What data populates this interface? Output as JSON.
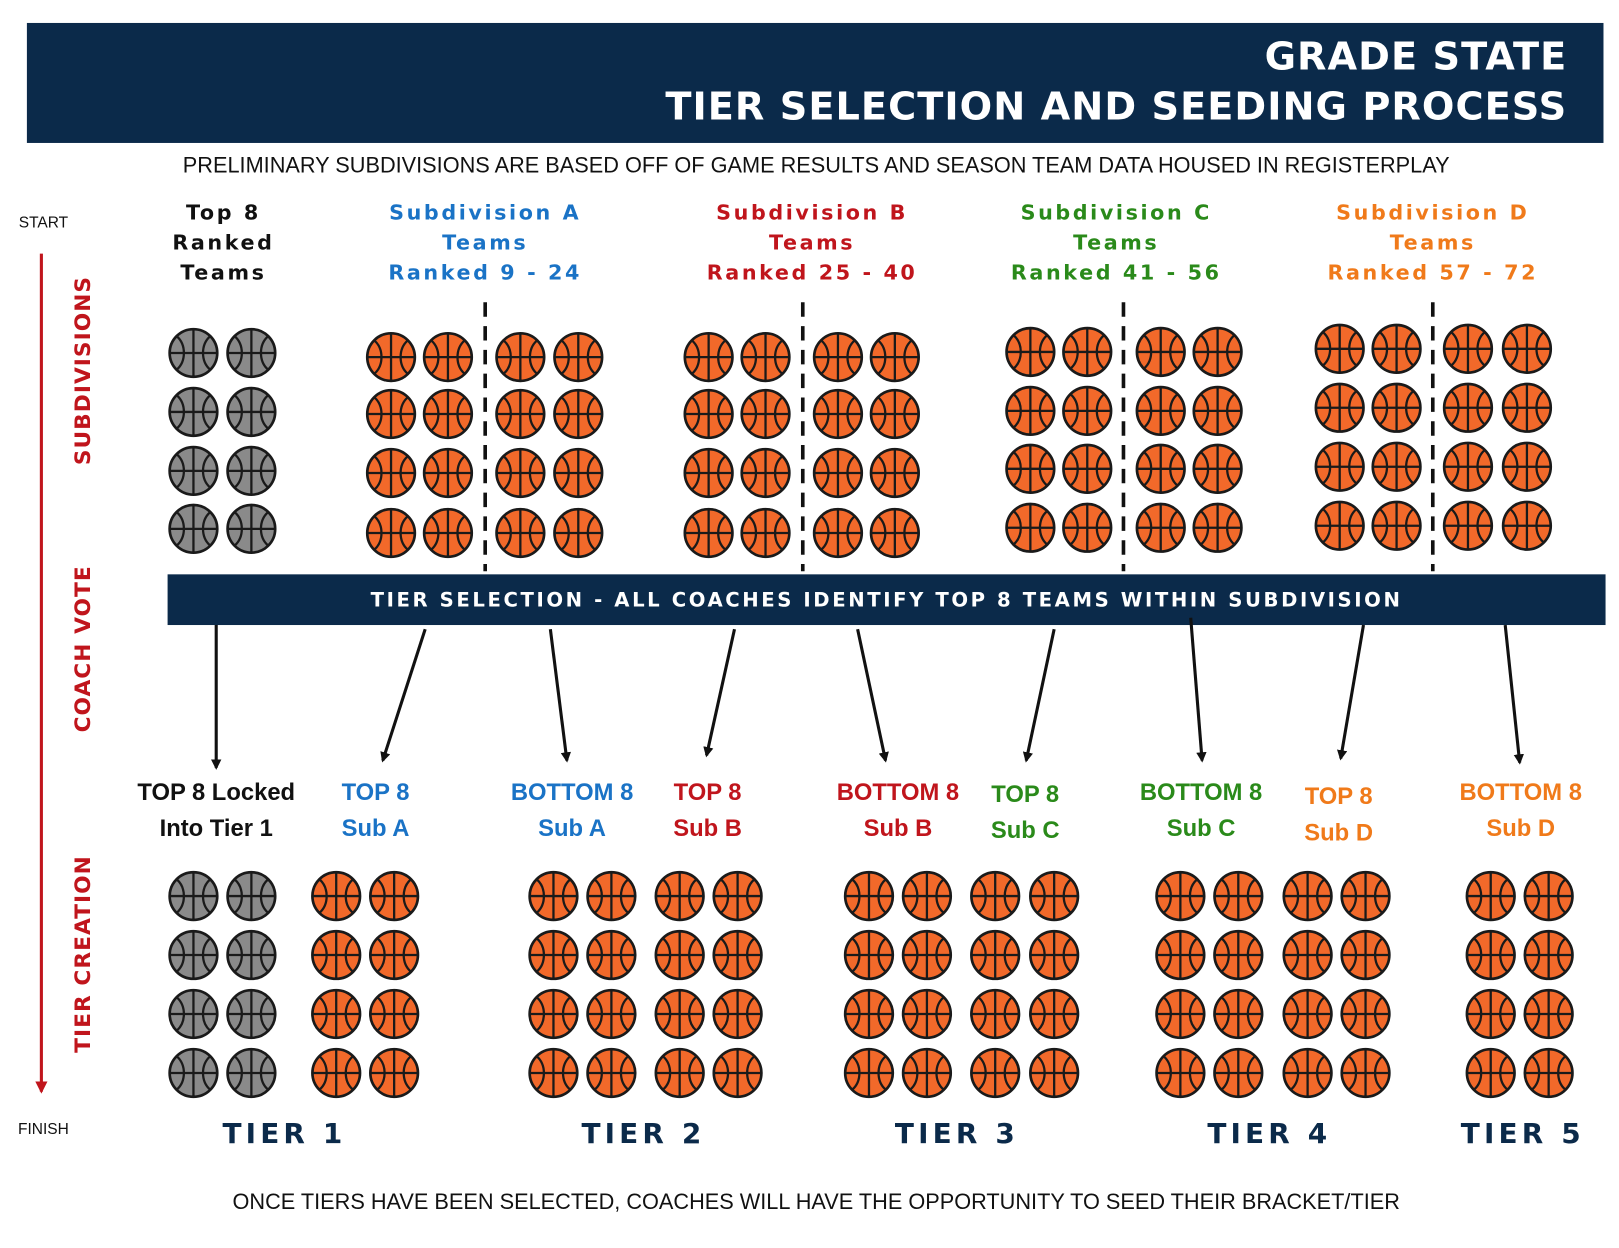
{
  "header": {
    "title_lines": [
      "GRADE STATE",
      "TIER SELECTION AND SEEDING PROCESS"
    ]
  },
  "subtitle": "PRELIMINARY SUBDIVISIONS ARE  BASED OFF OF GAME RESULTS AND SEASON TEAM DATA HOUSED IN REGISTERPLAY",
  "side": {
    "start": "START",
    "finish": "FINISH",
    "phases": [
      "SUBDIVISIONS",
      "COACH VOTE",
      "TIER CREATION"
    ]
  },
  "groups": [
    [
      "Top 8",
      "Ranked",
      "Teams"
    ],
    [
      "Subdivision A",
      "Teams",
      "Ranked 9 - 24"
    ],
    [
      "Subdivision B",
      "Teams",
      "Ranked 25 - 40"
    ],
    [
      "Subdivision C",
      "Teams",
      "Ranked 41 - 56"
    ],
    [
      "Subdivision D",
      "Teams",
      "Ranked 57 - 72"
    ]
  ],
  "banner": "TIER SELECTION - ALL COACHES IDENTIFY TOP 8 TEAMS WITHIN SUBDIVISION",
  "selections": [
    [
      "TOP 8 Locked",
      "Into Tier 1"
    ],
    [
      "TOP 8",
      "Sub A"
    ],
    [
      "BOTTOM 8",
      "Sub A"
    ],
    [
      "TOP 8",
      "Sub B"
    ],
    [
      "BOTTOM 8",
      "Sub B"
    ],
    [
      "TOP 8",
      "Sub C"
    ],
    [
      "BOTTOM 8",
      "Sub C"
    ],
    [
      "TOP 8",
      "Sub D"
    ],
    [
      "BOTTOM 8",
      "Sub D"
    ]
  ],
  "tiers": [
    "TIER 1",
    "TIER 2",
    "TIER 3",
    "TIER 4",
    "TIER 5"
  ],
  "footer": "ONCE TIERS HAVE BEEN SELECTED, COACHES WILL HAVE THE OPPORTUNITY TO SEED THEIR BRACKET/TIER"
}
